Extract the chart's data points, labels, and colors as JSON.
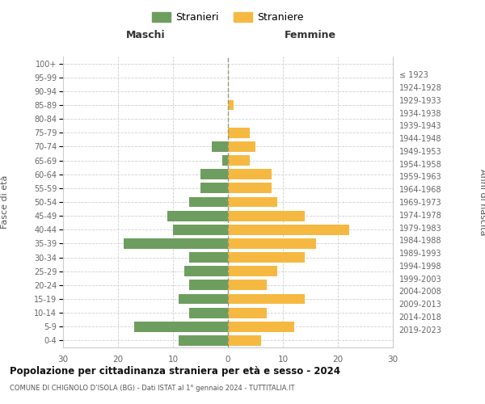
{
  "age_groups": [
    "0-4",
    "5-9",
    "10-14",
    "15-19",
    "20-24",
    "25-29",
    "30-34",
    "35-39",
    "40-44",
    "45-49",
    "50-54",
    "55-59",
    "60-64",
    "65-69",
    "70-74",
    "75-79",
    "80-84",
    "85-89",
    "90-94",
    "95-99",
    "100+"
  ],
  "birth_years": [
    "2019-2023",
    "2014-2018",
    "2009-2013",
    "2004-2008",
    "1999-2003",
    "1994-1998",
    "1989-1993",
    "1984-1988",
    "1979-1983",
    "1974-1978",
    "1969-1973",
    "1964-1968",
    "1959-1963",
    "1954-1958",
    "1949-1953",
    "1944-1948",
    "1939-1943",
    "1934-1938",
    "1929-1933",
    "1924-1928",
    "≤ 1923"
  ],
  "maschi": [
    9,
    17,
    7,
    9,
    7,
    8,
    7,
    19,
    10,
    11,
    7,
    5,
    5,
    1,
    3,
    0,
    0,
    0,
    0,
    0,
    0
  ],
  "femmine": [
    6,
    12,
    7,
    14,
    7,
    9,
    14,
    16,
    22,
    14,
    9,
    8,
    8,
    4,
    5,
    4,
    0,
    1,
    0,
    0,
    0
  ],
  "male_color": "#6e9e5f",
  "female_color": "#f5b942",
  "title": "Popolazione per cittadinanza straniera per età e sesso - 2024",
  "subtitle": "COMUNE DI CHIGNOLO D’ISOLA (BG) - Dati ISTAT al 1° gennaio 2024 - TUTTITALIA.IT",
  "xlabel_left": "Maschi",
  "xlabel_right": "Femmine",
  "ylabel_left": "Fasce di età",
  "ylabel_right": "Anni di nascita",
  "legend_male": "Stranieri",
  "legend_female": "Straniere",
  "xlim": 30,
  "background_color": "#ffffff",
  "grid_color": "#d0d0d0"
}
